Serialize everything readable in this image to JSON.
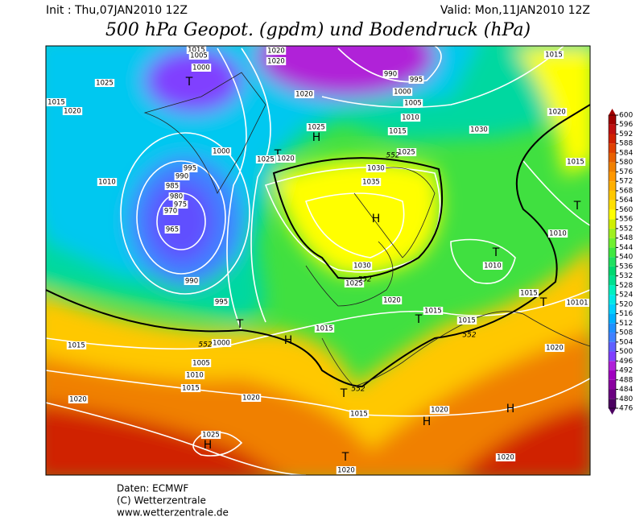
{
  "header": {
    "init": "Init : Thu,07JAN2010 12Z",
    "valid": "Valid: Mon,11JAN2010 12Z",
    "title": "500 hPa Geopot. (gpdm) und Bodendruck (hPa)"
  },
  "footer": {
    "lines": [
      "Daten: ECMWF",
      "(C) Wetterzentrale",
      "www.wetterzentrale.de"
    ]
  },
  "colorbar": {
    "levels": [
      476,
      480,
      484,
      488,
      492,
      496,
      500,
      504,
      508,
      512,
      516,
      520,
      524,
      528,
      532,
      536,
      540,
      544,
      548,
      552,
      556,
      560,
      564,
      568,
      572,
      576,
      580,
      584,
      588,
      592,
      596,
      600
    ],
    "colors": [
      "#4b0060",
      "#6a0080",
      "#8a00a0",
      "#a000c0",
      "#b020d8",
      "#8040ff",
      "#6060ff",
      "#4080ff",
      "#2090ff",
      "#00b0ff",
      "#00d0ff",
      "#00e8e8",
      "#00f0c0",
      "#00e090",
      "#00d870",
      "#20e060",
      "#40e840",
      "#70f030",
      "#a0f020",
      "#d0f000",
      "#ffff00",
      "#ffe000",
      "#ffc800",
      "#ffb000",
      "#ff9800",
      "#f08000",
      "#e86000",
      "#e04000",
      "#d02000",
      "#c01010",
      "#a00000"
    ]
  },
  "map_labels": [
    "1020",
    "1020",
    "1015",
    "1005",
    "1000",
    "T",
    "1025",
    "1015",
    "1020",
    "1020",
    "990",
    "995",
    "1000",
    "1005",
    "1010",
    "1015",
    "1025",
    "H",
    "1000",
    "T",
    "1025",
    "1020",
    "1025",
    "1030",
    "1020",
    "1015",
    "1015",
    "1010",
    "995",
    "990",
    "985",
    "980",
    "975",
    "970",
    "965",
    "1030",
    "1035",
    "H",
    "T",
    "1010",
    "1010",
    "1030",
    "1025",
    "990",
    "995",
    "1020",
    "1015",
    "1015",
    "1015",
    "T",
    "10101",
    "T",
    "1015",
    "H",
    "1000",
    "1015",
    "1005",
    "1010",
    "1020",
    "1015",
    "1020",
    "T",
    "1015",
    "H",
    "1020",
    "H",
    "1020",
    "1025",
    "H",
    "T",
    "1020",
    "1020",
    "T",
    "T",
    "552",
    "552",
    "552",
    "552",
    "552"
  ]
}
